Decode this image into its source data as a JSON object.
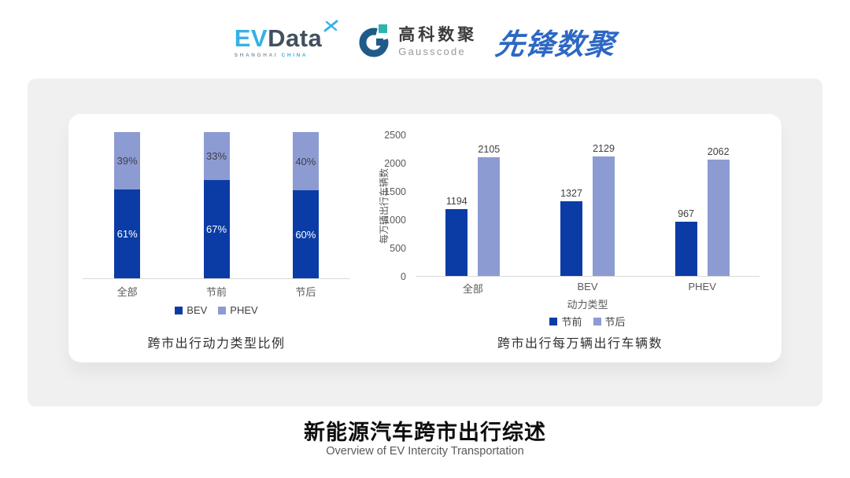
{
  "header": {
    "evdata": {
      "ev": "EV",
      "data": "Data",
      "tagline_left": "SHANGHAI",
      "tagline_right": "CHINA"
    },
    "gausscode": {
      "name_cn": "高科数聚",
      "name_en": "Gausscode"
    },
    "pioneer": {
      "name": "先锋数聚"
    }
  },
  "chart_data": [
    {
      "type": "bar",
      "variant": "stacked-100-percent",
      "title": "跨市出行动力类型比例",
      "categories": [
        "全部",
        "节前",
        "节后"
      ],
      "series": [
        {
          "name": "BEV",
          "values": [
            61,
            67,
            60
          ],
          "labels": [
            "61%",
            "67%",
            "60%"
          ],
          "color": "#0b3ca6"
        },
        {
          "name": "PHEV",
          "values": [
            39,
            33,
            40
          ],
          "labels": [
            "39%",
            "33%",
            "40%"
          ],
          "color": "#8d9bd3"
        }
      ],
      "ylim": [
        0,
        100
      ],
      "legend_position": "bottom",
      "grid": false
    },
    {
      "type": "bar",
      "variant": "grouped",
      "title": "跨市出行每万辆出行车辆数",
      "categories": [
        "全部",
        "BEV",
        "PHEV"
      ],
      "xlabel": "动力类型",
      "ylabel": "每万辆出行车辆数",
      "series": [
        {
          "name": "节前",
          "values": [
            1194,
            1327,
            967
          ],
          "color": "#0b3ca6"
        },
        {
          "name": "节后",
          "values": [
            2105,
            2129,
            2062
          ],
          "color": "#8d9bd3"
        }
      ],
      "ylim": [
        0,
        2500
      ],
      "yticks": [
        0,
        500,
        1000,
        1500,
        2000,
        2500
      ],
      "legend_position": "bottom",
      "grid": false
    }
  ],
  "footer": {
    "title": "新能源汽车跨市出行综述",
    "subtitle": "Overview of EV Intercity Transportation"
  },
  "colors": {
    "primary_dark_blue": "#0b3ca6",
    "secondary_light_blue": "#8d9bd3",
    "evdata_cyan": "#35b2e5",
    "evdata_navy": "#42505f",
    "gauss_blue": "#1f5b89",
    "gauss_teal": "#2fb3af",
    "pioneer_blue": "#2d68c4",
    "axis_text": "#595959",
    "card_gray": "#f0f0f0"
  }
}
